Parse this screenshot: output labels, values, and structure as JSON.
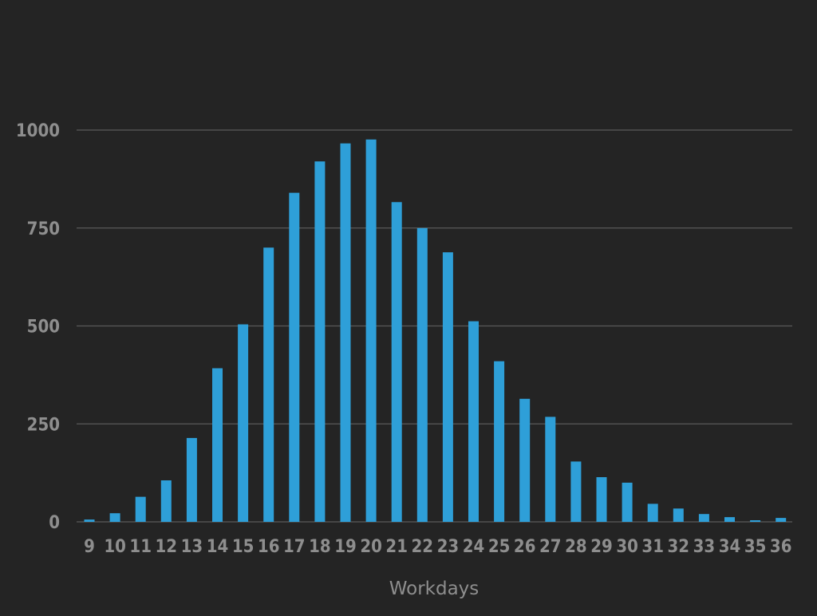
{
  "chart_data": {
    "type": "bar",
    "title": "",
    "xlabel": "Workdays",
    "ylabel": "",
    "categories": [
      "9",
      "10",
      "11",
      "12",
      "13",
      "14",
      "15",
      "16",
      "17",
      "18",
      "19",
      "20",
      "21",
      "22",
      "23",
      "24",
      "25",
      "26",
      "27",
      "28",
      "29",
      "30",
      "31",
      "32",
      "33",
      "34",
      "35",
      "36"
    ],
    "values": [
      6,
      22,
      64,
      106,
      214,
      392,
      504,
      700,
      840,
      920,
      966,
      976,
      816,
      750,
      688,
      512,
      410,
      314,
      268,
      154,
      114,
      100,
      46,
      34,
      20,
      12,
      4,
      10
    ],
    "yticks": [
      0,
      250,
      500,
      750,
      1000
    ],
    "ylim": [
      0,
      1000
    ],
    "grid": true,
    "legend": "none",
    "colors": {
      "bar": "#2e9fd8",
      "grid": "#5a5a5a",
      "text": "#8e8e8e",
      "background": "#242424"
    }
  }
}
